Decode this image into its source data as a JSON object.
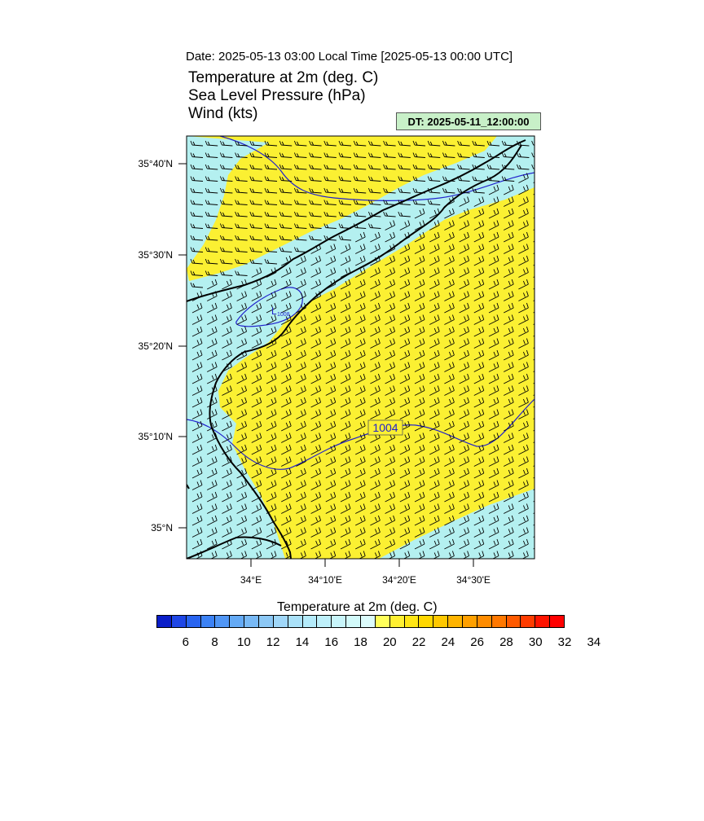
{
  "header": {
    "date_line": "Date: 2025-05-13  03:00 Local Time [2025-05-13  00:00 UTC]",
    "titles": [
      "Temperature at 2m   (deg. C)",
      "Sea Level Pressure   (hPa)",
      "Wind   (kts)"
    ],
    "dt_badge": "DT: 2025-05-11_12:00:00"
  },
  "map": {
    "lat_labels": [
      "35°40'N",
      "35°30'N",
      "35°20'N",
      "35°10'N",
      "35°N"
    ],
    "lon_labels": [
      "34°E",
      "34°10'E",
      "34°20'E",
      "34°30'E"
    ],
    "contour_labels": [
      "1004",
      "1008"
    ],
    "low_marker": "L",
    "colors": {
      "warm": "#fbf032",
      "cool": "#b4f0f0",
      "isobar": "#2222cc"
    }
  },
  "colorbar": {
    "title": "Temperature at 2m  (deg. C)",
    "colors": [
      "#0a1ec8",
      "#1e46e6",
      "#2864f0",
      "#3c82f5",
      "#5096f5",
      "#64aaf5",
      "#78b9f5",
      "#8cc8f5",
      "#a0d7f8",
      "#aae1f8",
      "#b4ebfa",
      "#bef0fa",
      "#c8f5fa",
      "#d2fafa",
      "#dcfcfc",
      "#ffff5a",
      "#fff032",
      "#ffe614",
      "#ffd700",
      "#ffc800",
      "#ffb400",
      "#ffa000",
      "#ff8c00",
      "#ff7800",
      "#ff5a00",
      "#ff3c00",
      "#ff1400",
      "#ff0000"
    ],
    "labels": [
      "6",
      "8",
      "10",
      "12",
      "14",
      "16",
      "18",
      "20",
      "22",
      "24",
      "26",
      "28",
      "30",
      "32",
      "34"
    ]
  }
}
